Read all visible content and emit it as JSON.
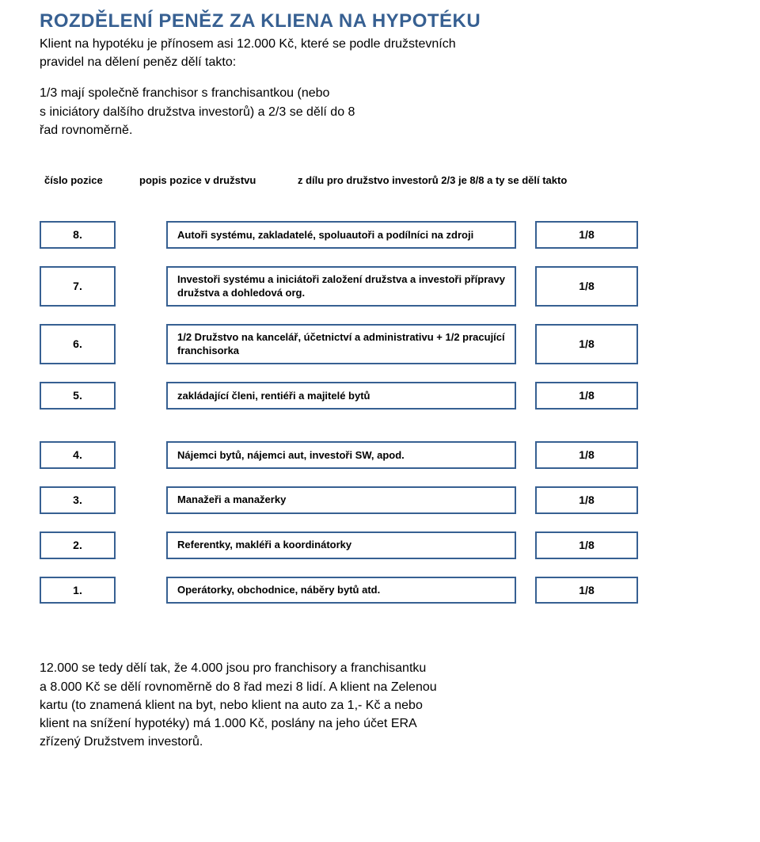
{
  "colors": {
    "accent": "#376092",
    "text": "#000000",
    "background": "#ffffff"
  },
  "title": "ROZDĚLENÍ PENĚZ ZA KLIENA NA HYPOTÉKU",
  "intro_lines": [
    "Klient na hypotéku je přínosem asi 12.000 Kč, které se podle družstevních",
    "pravidel na dělení peněz dělí takto:"
  ],
  "intro_lines2": [
    "1/3 mají společně franchisor s franchisantkou (nebo",
    "s iniciátory dalšího družstva investorů) a 2/3 se dělí do 8",
    "řad rovnoměrně."
  ],
  "columns": {
    "pos": "číslo pozice",
    "desc": "popis pozice v družstvu",
    "frac": "z dílu pro družstvo investorů 2/3 je 8/8 a ty se dělí takto"
  },
  "fraction_label": "1/8",
  "rows": [
    {
      "num": "8.",
      "desc": "Autoři systému, zakladatelé, spoluautoři a podílníci na zdroji",
      "gap": false
    },
    {
      "num": "7.",
      "desc": "Investoři systému a iniciátoři založení družstva a investoři přípravy družstva a dohledová org.",
      "gap": false
    },
    {
      "num": "6.",
      "desc": "1/2 Družstvo na kancelář, účetnictví a administrativu + 1/2 pracující franchisorka",
      "gap": false
    },
    {
      "num": "5.",
      "desc": "zakládající členi, rentiéři a majitelé bytů",
      "gap": true
    },
    {
      "num": "4.",
      "desc": "Nájemci bytů, nájemci aut, investoři SW, apod.",
      "gap": false
    },
    {
      "num": "3.",
      "desc": "Manažeři a manažerky",
      "gap": false
    },
    {
      "num": "2.",
      "desc": "Referentky, makléři a koordinátorky",
      "gap": false
    },
    {
      "num": "1.",
      "desc": "Operátorky, obchodnice, náběry bytů atd.",
      "gap": false
    }
  ],
  "outro_lines": [
    "12.000 se tedy dělí tak, že 4.000 jsou pro franchisory a franchisantku",
    "a 8.000 Kč se dělí rovnoměrně do 8 řad mezi 8 lidí. A klient na Zelenou",
    "kartu (to znamená klient na byt, nebo klient na auto za 1,- Kč a nebo",
    "klient na snížení hypotéky) má 1.000 Kč, poslány na jeho účet ERA",
    "zřízený Družstvem investorů."
  ]
}
